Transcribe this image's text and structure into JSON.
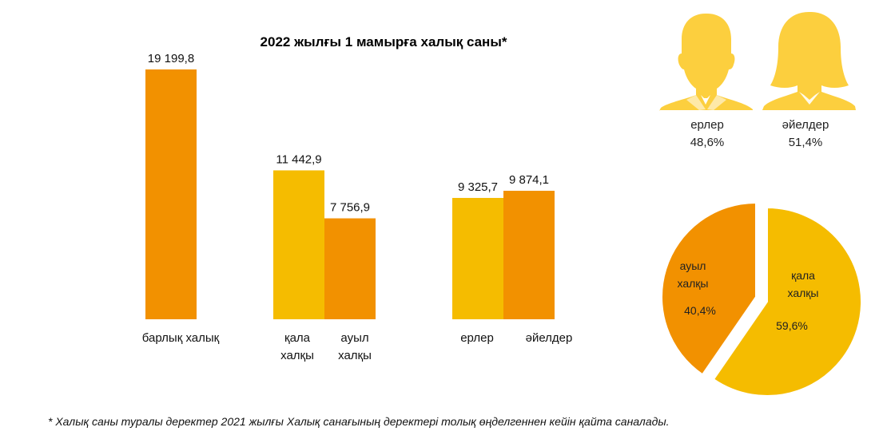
{
  "chart_data": [
    {
      "type": "bar",
      "title": "2022 жылғы 1 мамырға халық саны*",
      "categories": [
        [
          "барлық халық"
        ],
        [
          "қала",
          "халқы"
        ],
        [
          "ауыл",
          "халқы"
        ],
        [
          "ерлер"
        ],
        [
          "әйелдер"
        ]
      ],
      "values": [
        19199.8,
        11442.9,
        7756.9,
        9325.7,
        9874.1
      ],
      "value_labels": [
        "19 199,8",
        "11 442,9",
        "7 756,9",
        "9 325,7",
        "9 874,1"
      ],
      "groups": [
        [
          0
        ],
        [
          1,
          2
        ],
        [
          3,
          4
        ]
      ],
      "colors": [
        "#F29100",
        "#F5BC00",
        "#F29100",
        "#F5BC00",
        "#F29100"
      ],
      "ylim": [
        0,
        20000
      ],
      "grid": false
    },
    {
      "type": "pie",
      "slices": [
        {
          "label": [
            "қала",
            "халқы"
          ],
          "value": 59.6,
          "value_label": "59,6%",
          "color": "#F5BC00"
        },
        {
          "label": [
            "ауыл",
            "халқы"
          ],
          "value": 40.4,
          "value_label": "40,4%",
          "color": "#F29100"
        }
      ]
    }
  ],
  "gender": [
    {
      "icon": "man-silhouette-icon",
      "label": "ерлер",
      "value": "48,6%",
      "color": "#FCCF3E"
    },
    {
      "icon": "woman-silhouette-icon",
      "label": "әйелдер",
      "value": "51,4%",
      "color": "#FCCF3E"
    }
  ],
  "footnote": "* Халық саны туралы деректер 2021 жылғы Халық санағының деректері толық өңделгеннен кейін қайта саналады."
}
